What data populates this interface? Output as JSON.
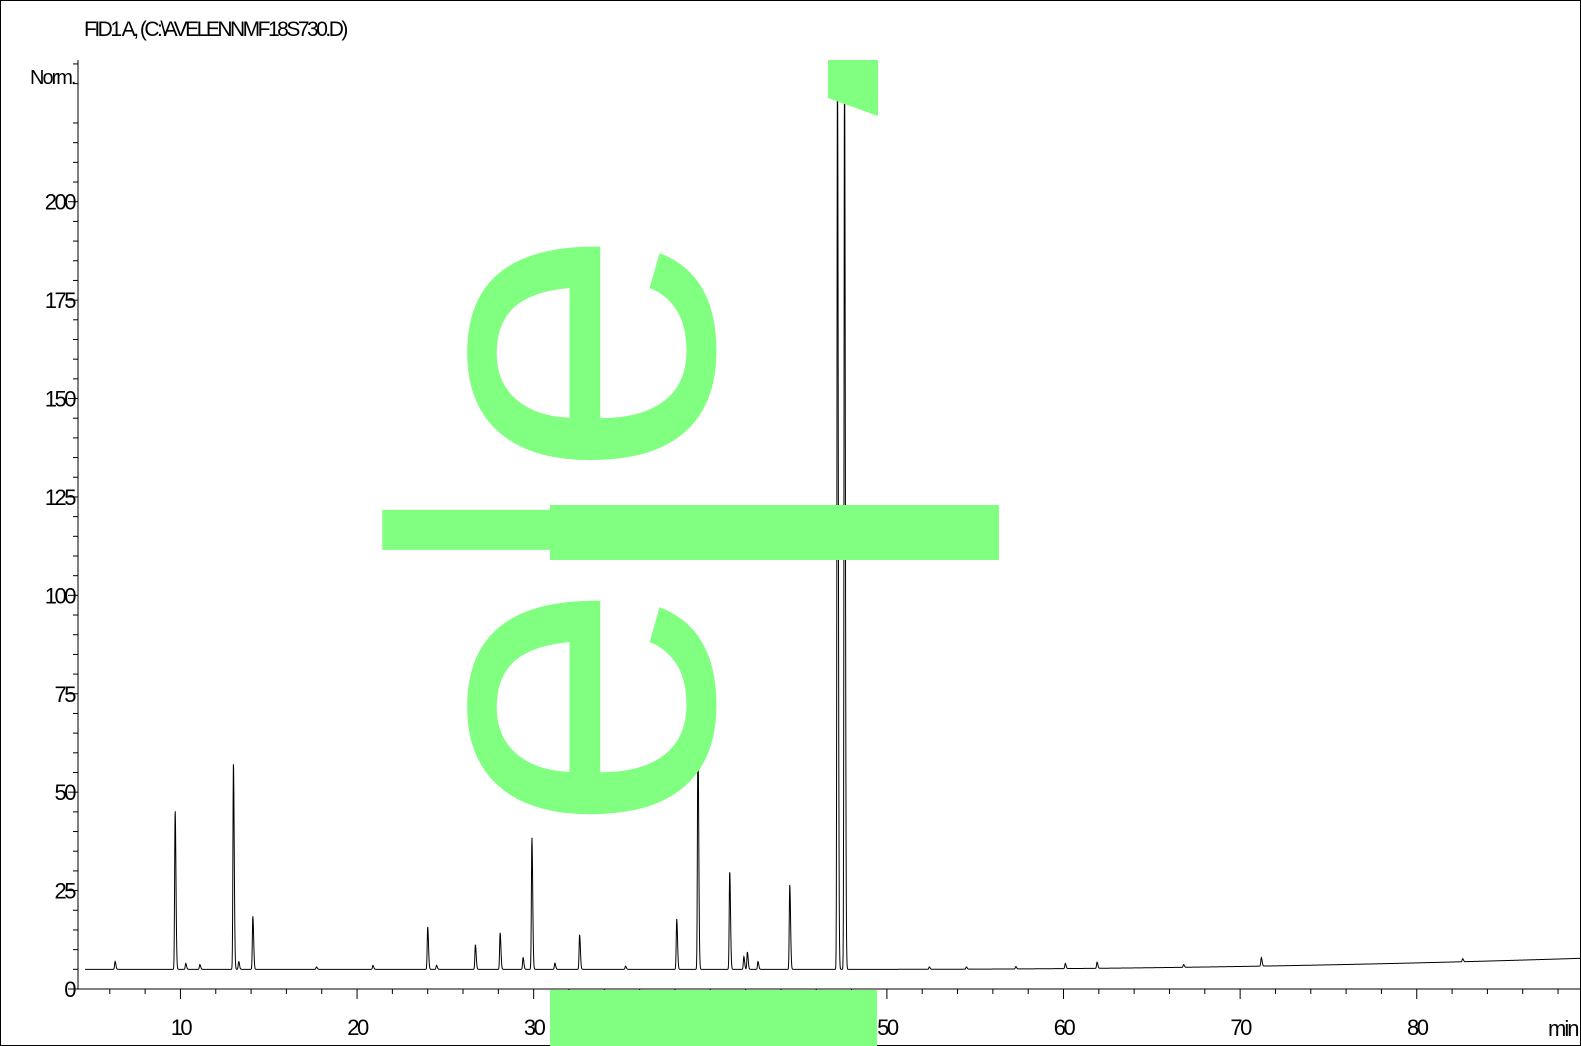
{
  "chart_data": {
    "type": "line",
    "title": "FID1 A, (C:\\AVELENNMF18S730.D)",
    "ylabel": "Norm.",
    "xlabel": "min",
    "xlim": [
      4.2,
      89.3
    ],
    "ylim": [
      0,
      236
    ],
    "y_ticks": [
      0,
      25,
      50,
      75,
      100,
      125,
      150,
      175,
      200
    ],
    "y_tick_labels": [
      "0",
      "25",
      "50",
      "75",
      "100",
      "125",
      "150",
      "175",
      "200"
    ],
    "x_ticks": [
      10,
      20,
      30,
      40,
      50,
      60,
      70,
      80
    ],
    "x_tick_labels": [
      "10",
      "20",
      "30",
      "40",
      "50",
      "60",
      "70",
      "80"
    ],
    "x_unit_label": "min",
    "grid": false,
    "legend": "none",
    "baseline": {
      "start": 5.0,
      "end": 7.8,
      "end_x": 89.3
    },
    "peaks": [
      {
        "x": 6.3,
        "height": 7.0
      },
      {
        "x": 9.7,
        "height": 45.5
      },
      {
        "x": 10.3,
        "height": 6.5
      },
      {
        "x": 11.1,
        "height": 6.2
      },
      {
        "x": 13.0,
        "height": 57.5
      },
      {
        "x": 13.3,
        "height": 7.0
      },
      {
        "x": 14.1,
        "height": 18.5
      },
      {
        "x": 17.7,
        "height": 5.6
      },
      {
        "x": 20.9,
        "height": 6.0
      },
      {
        "x": 24.0,
        "height": 15.8
      },
      {
        "x": 24.5,
        "height": 6.0
      },
      {
        "x": 26.7,
        "height": 11.3
      },
      {
        "x": 28.1,
        "height": 14.3
      },
      {
        "x": 29.4,
        "height": 8.0
      },
      {
        "x": 29.9,
        "height": 38.5
      },
      {
        "x": 31.2,
        "height": 6.6
      },
      {
        "x": 32.6,
        "height": 13.8
      },
      {
        "x": 35.2,
        "height": 5.8
      },
      {
        "x": 38.1,
        "height": 17.8
      },
      {
        "x": 39.3,
        "height": 64.5
      },
      {
        "x": 41.1,
        "height": 30.0
      },
      {
        "x": 41.9,
        "height": 8.2
      },
      {
        "x": 42.1,
        "height": 9.4
      },
      {
        "x": 42.7,
        "height": 7.0
      },
      {
        "x": 44.5,
        "height": 26.5
      },
      {
        "x": 47.2,
        "height": 236.0
      },
      {
        "x": 47.6,
        "height": 236.0
      },
      {
        "x": 52.4,
        "height": 5.6
      },
      {
        "x": 54.5,
        "height": 5.6
      },
      {
        "x": 57.3,
        "height": 5.7
      },
      {
        "x": 60.1,
        "height": 6.5
      },
      {
        "x": 61.9,
        "height": 6.8
      },
      {
        "x": 66.8,
        "height": 6.2
      },
      {
        "x": 71.2,
        "height": 8.0
      },
      {
        "x": 82.6,
        "height": 7.7
      }
    ]
  },
  "watermark": {
    "text": "ele",
    "color": "#80ff80"
  }
}
